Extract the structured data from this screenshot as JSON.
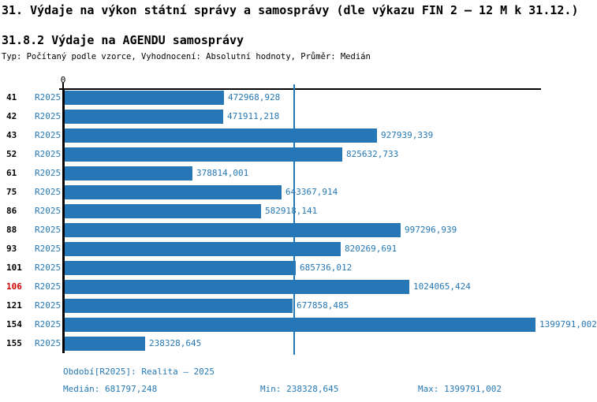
{
  "header": {
    "title": "31. Výdaje na výkon státní správy a samosprávy (dle výkazu FIN 2 – 12 M k 31.12.)",
    "subtitle": "31.8.2 Výdaje na AGENDU samosprávy",
    "meta": "Typ: Počítaný podle vzorce, Vyhodnocení: Absolutní hodnoty, Průměr: Medián"
  },
  "chart_data": {
    "type": "bar",
    "orientation": "horizontal",
    "axis_zero_label": "0",
    "series_label": "R2025",
    "categories": [
      "41",
      "42",
      "43",
      "52",
      "61",
      "75",
      "86",
      "88",
      "93",
      "101",
      "106",
      "121",
      "154",
      "155"
    ],
    "values": [
      472968.928,
      471911.218,
      927939.339,
      825632.733,
      378814.001,
      643367.914,
      582918.141,
      997296.939,
      820269.691,
      685736.012,
      1024065.424,
      677858.485,
      1399791.002,
      238328.645
    ],
    "value_labels": [
      "472968,928",
      "471911,218",
      "927939,339",
      "825632,733",
      "378814,001",
      "643367,914",
      "582918,141",
      "997296,939",
      "820269,691",
      "685736,012",
      "1024065,424",
      "677858,485",
      "1399791,002",
      "238328,645"
    ],
    "highlighted_category": "106",
    "median": 681797.248,
    "min": 238328.645,
    "max": 1399791.002,
    "xlim": [
      0,
      1430000
    ],
    "grid": false,
    "legend_position": "none",
    "colors": {
      "bar": "#2578b5",
      "label_text": "#2578b5",
      "median_line": "#2578b5",
      "highlight_text": "#cc0000",
      "axis": "#000000"
    }
  },
  "footer": {
    "period": "Období[R2025]: Realita – 2025",
    "median_label": "Medián: 681797,248",
    "min_label": "Min: 238328,645",
    "max_label": "Max: 1399791,002"
  }
}
